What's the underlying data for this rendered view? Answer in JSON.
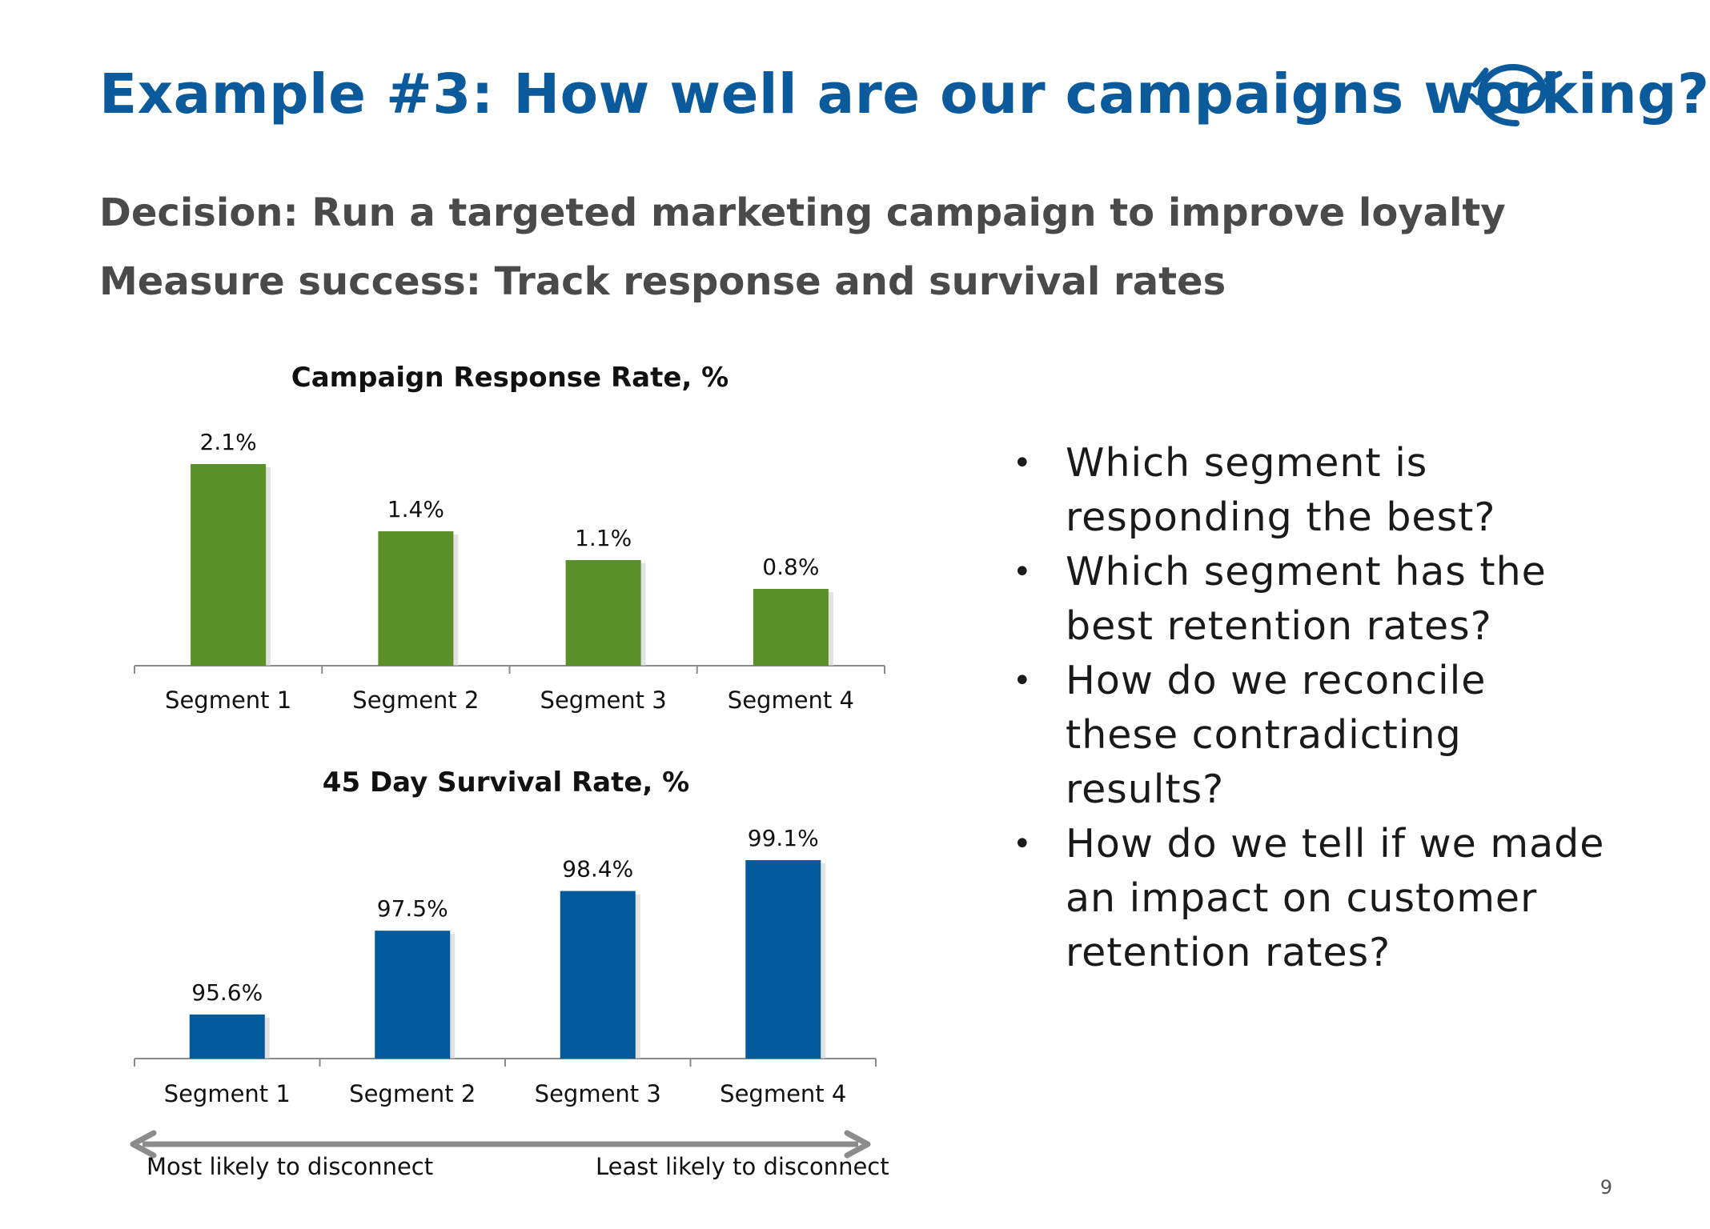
{
  "slide": {
    "title": "Example #3: How well are our campaigns working?",
    "decision": "Decision: Run a targeted marketing campaign to improve loyalty",
    "measure": "Measure success: Track response and survival rates",
    "page_number": "9",
    "colors": {
      "title": "#0a5a9c",
      "subtitle": "#4a4a4a",
      "response_bars": "#5b8f28",
      "survival_bars": "#005a9c"
    }
  },
  "bullets": [
    {
      "text": "Which segment is responding the best?"
    },
    {
      "text": "Which segment has the best retention rates?"
    },
    {
      "text": "How do we reconcile these contradicting results?"
    },
    {
      "text": "How do we tell if we made an impact on customer retention rates?"
    }
  ],
  "arrow": {
    "left_label": "Most likely to disconnect",
    "right_label": "Least likely to disconnect"
  },
  "chart_data": [
    {
      "type": "bar",
      "title": "Campaign Response Rate, %",
      "categories": [
        "Segment 1",
        "Segment 2",
        "Segment 3",
        "Segment 4"
      ],
      "values": [
        2.1,
        1.4,
        1.1,
        0.8
      ],
      "labels": [
        "2.1%",
        "1.4%",
        "1.1%",
        "0.8%"
      ],
      "color": "#5b8f28",
      "grid": false
    },
    {
      "type": "bar",
      "title": "45 Day Survival Rate, %",
      "categories": [
        "Segment 1",
        "Segment 2",
        "Segment 3",
        "Segment 4"
      ],
      "values": [
        95.6,
        97.5,
        98.4,
        99.1
      ],
      "labels": [
        "95.6%",
        "97.5%",
        "98.4%",
        "99.1%"
      ],
      "color": "#005a9c",
      "grid": false
    }
  ]
}
